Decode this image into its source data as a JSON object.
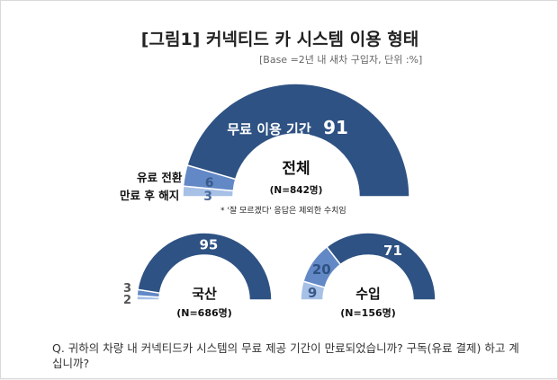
{
  "title": "[그림1] 커넥티드 카 시스템 이용 형태",
  "base_note": "[Base =2년 내 새차 구입자, 단위 :%]",
  "footnote": "* '잘 모르겠다' 응답은 제외한 수치임",
  "question": "Q. 귀하의 차량 내 커넥티드카 시스템의 무료 제공 기간이 만료되었습니까? 구독(유료 결제) 하고 계십니까?",
  "legend": {
    "paid_switch": "유료 전환",
    "free_end": "만료 후 해지"
  },
  "colors": {
    "in_period": "#2e5283",
    "paid_switch": "#6288c6",
    "free_end": "#a7c0e6"
  },
  "chart_data": [
    {
      "type": "pie",
      "style": "half-donut",
      "group": "전체",
      "n_label": "(N=842명)",
      "categories": [
        "무료 이용 기간",
        "유료 전환",
        "만료 후 해지"
      ],
      "values": [
        91,
        6,
        3
      ],
      "main_label": "무료 이용 기간"
    },
    {
      "type": "pie",
      "style": "half-donut",
      "group": "국산",
      "n_label": "(N=686명)",
      "categories": [
        "무료 이용 기간",
        "유료 전환",
        "만료 후 해지"
      ],
      "values": [
        95,
        3,
        2
      ]
    },
    {
      "type": "pie",
      "style": "half-donut",
      "group": "수입",
      "n_label": "(N=156명)",
      "categories": [
        "무료 이용 기간",
        "유료 전환",
        "만료 후 해지"
      ],
      "values": [
        71,
        20,
        9
      ]
    }
  ]
}
